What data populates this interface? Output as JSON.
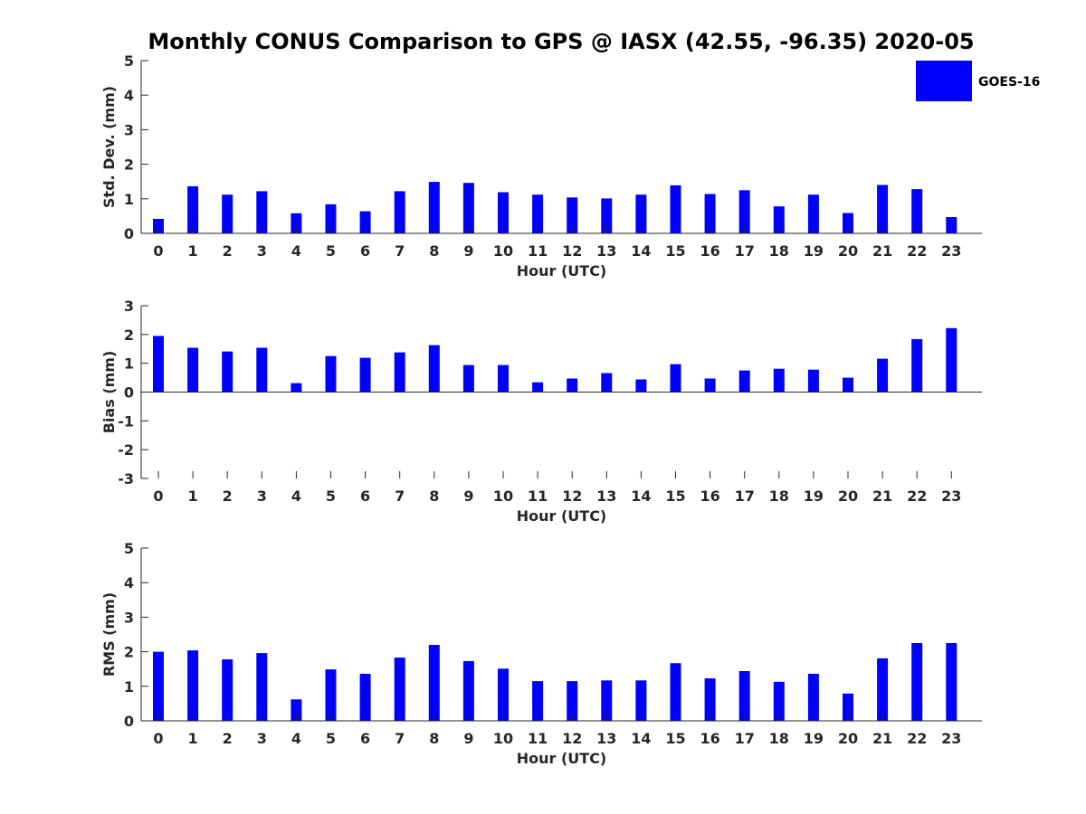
{
  "title": "Monthly CONUS Comparison to GPS @ IASX (42.55, -96.35) 2020-05",
  "legend": {
    "label": "GOES-16",
    "color": "#0000FF"
  },
  "chart_data": [
    {
      "type": "bar",
      "xlabel": "Hour (UTC)",
      "ylabel": "Std. Dev. (mm)",
      "ylim": [
        0,
        5
      ],
      "yticks": [
        0,
        1,
        2,
        3,
        4,
        5
      ],
      "categories": [
        "0",
        "1",
        "2",
        "3",
        "4",
        "5",
        "6",
        "7",
        "8",
        "9",
        "10",
        "11",
        "12",
        "13",
        "14",
        "15",
        "16",
        "17",
        "18",
        "19",
        "20",
        "21",
        "22",
        "23"
      ],
      "series": [
        {
          "name": "GOES-16",
          "values": [
            0.42,
            1.36,
            1.12,
            1.22,
            0.58,
            0.84,
            0.64,
            1.22,
            1.49,
            1.46,
            1.19,
            1.12,
            1.04,
            1.01,
            1.12,
            1.39,
            1.14,
            1.25,
            0.78,
            1.12,
            0.59,
            1.4,
            1.28,
            0.47
          ]
        }
      ]
    },
    {
      "type": "bar",
      "xlabel": "Hour (UTC)",
      "ylabel": "Bias (mm)",
      "ylim": [
        -3,
        3
      ],
      "yticks": [
        -3,
        -2,
        -1,
        0,
        1,
        2,
        3
      ],
      "categories": [
        "0",
        "1",
        "2",
        "3",
        "4",
        "5",
        "6",
        "7",
        "8",
        "9",
        "10",
        "11",
        "12",
        "13",
        "14",
        "15",
        "16",
        "17",
        "18",
        "19",
        "20",
        "21",
        "22",
        "23"
      ],
      "series": [
        {
          "name": "GOES-16",
          "values": [
            1.95,
            1.54,
            1.41,
            1.54,
            0.31,
            1.25,
            1.19,
            1.38,
            1.63,
            0.94,
            0.94,
            0.34,
            0.47,
            0.66,
            0.44,
            0.97,
            0.47,
            0.75,
            0.81,
            0.78,
            0.5,
            1.16,
            1.84,
            2.22
          ]
        }
      ]
    },
    {
      "type": "bar",
      "xlabel": "Hour (UTC)",
      "ylabel": "RMS (mm)",
      "ylim": [
        0,
        5
      ],
      "yticks": [
        0,
        1,
        2,
        3,
        4,
        5
      ],
      "categories": [
        "0",
        "1",
        "2",
        "3",
        "4",
        "5",
        "6",
        "7",
        "8",
        "9",
        "10",
        "11",
        "12",
        "13",
        "14",
        "15",
        "16",
        "17",
        "18",
        "19",
        "20",
        "21",
        "22",
        "23"
      ],
      "series": [
        {
          "name": "GOES-16",
          "values": [
            2.0,
            2.04,
            1.78,
            1.96,
            0.62,
            1.49,
            1.36,
            1.83,
            2.2,
            1.73,
            1.51,
            1.15,
            1.15,
            1.17,
            1.17,
            1.67,
            1.23,
            1.44,
            1.13,
            1.36,
            0.79,
            1.81,
            2.25,
            2.25
          ]
        }
      ]
    }
  ]
}
